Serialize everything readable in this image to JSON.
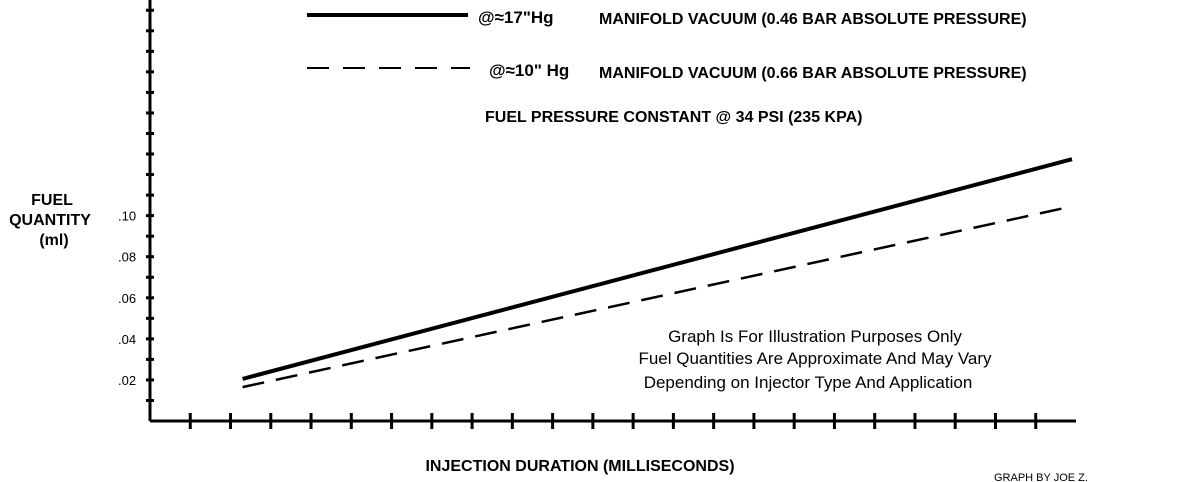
{
  "chart_data": {
    "type": "line",
    "xlabel": "INJECTION DURATION (MILLISECONDS)",
    "ylabel": [
      "FUEL",
      "QUANTITY",
      "(ml)"
    ],
    "y_tick_labels": [
      ".02",
      ".04",
      ".06",
      ".08",
      ".10"
    ],
    "y_tick_values": [
      0.02,
      0.04,
      0.06,
      0.08,
      0.1
    ],
    "x_ticks_count": 22,
    "x_tick_labels_shown": false,
    "ylim": [
      0,
      0.205
    ],
    "xlim": [
      0,
      23
    ],
    "grid": false,
    "legend_placement": "top",
    "subtitle": "FUEL PRESSURE CONSTANT @ 34 PSI (235 KPA)",
    "series": [
      {
        "name_symbol": "@≈17\"Hg",
        "name": "MANIFOLD VACUUM (0.46 BAR  ABSOLUTE PRESSURE)",
        "style": "solid",
        "x": [
          2.3,
          22.9
        ],
        "y": [
          0.0205,
          0.1275
        ]
      },
      {
        "name_symbol": "@≈10\" Hg",
        "name": "MANIFOLD VACUUM (0.66 BAR  ABSOLUTE PRESSURE)",
        "style": "dashed",
        "x": [
          2.3,
          22.9
        ],
        "y": [
          0.0165,
          0.1045
        ]
      }
    ],
    "annotations": [
      "Graph Is For Illustration Purposes Only",
      "Fuel Quantities Are Approximate And May Vary",
      "Depending on Injector Type And Application"
    ],
    "credit": "GRAPH BY  JOE Z."
  },
  "colors": {
    "line": "#000000",
    "background": "#ffffff"
  }
}
